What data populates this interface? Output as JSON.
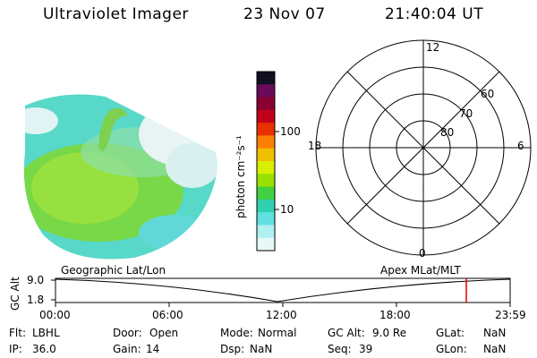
{
  "header": {
    "instrument": "Ultraviolet Imager",
    "date": "23 Nov 07",
    "time": "21:40:04 UT"
  },
  "colorbar": {
    "unit_label": "photon cm⁻²s⁻¹",
    "ticks": [
      "100",
      "10"
    ],
    "colors": [
      "#101020",
      "#6a0a5a",
      "#8a0030",
      "#c00018",
      "#e83000",
      "#ff8000",
      "#f0c000",
      "#d8f000",
      "#98e000",
      "#40d040",
      "#30d0b0",
      "#60e0e0",
      "#b0f0f0",
      "#e8f8f8"
    ]
  },
  "polar_plot": {
    "mlt_labels": {
      "top": "12",
      "left": "18",
      "right": "6",
      "bottom": "0"
    },
    "lat_labels": [
      "60",
      "70",
      "80"
    ]
  },
  "timeline": {
    "left_caption": "Geographic Lat/Lon",
    "right_caption": "Apex MLat/MLT",
    "y_axis_label": "GC Alt",
    "y_ticks": [
      "9.0",
      "1.8"
    ],
    "x_ticks": [
      "00:00",
      "06:00",
      "12:00",
      "18:00",
      "23:59"
    ],
    "marker_time_hours": 21.67,
    "marker_color": "#e00000"
  },
  "status": {
    "flt_label": "Flt:",
    "flt_value": "LBHL",
    "door_label": "Door:",
    "door_value": "Open",
    "mode_label": "Mode:",
    "mode_value": "Normal",
    "gcalt_label": "GC Alt:",
    "gcalt_value": "9.0 Re",
    "glat_label": "GLat:",
    "glat_value": "NaN",
    "ip_label": "IP:",
    "ip_value": "36.0",
    "gain_label": "Gain:",
    "gain_value": "14",
    "dsp_label": "Dsp:",
    "dsp_value": "NaN",
    "seq_label": "Seq:",
    "seq_value": "39",
    "glon_label": "GLon:",
    "glon_value": "NaN"
  }
}
